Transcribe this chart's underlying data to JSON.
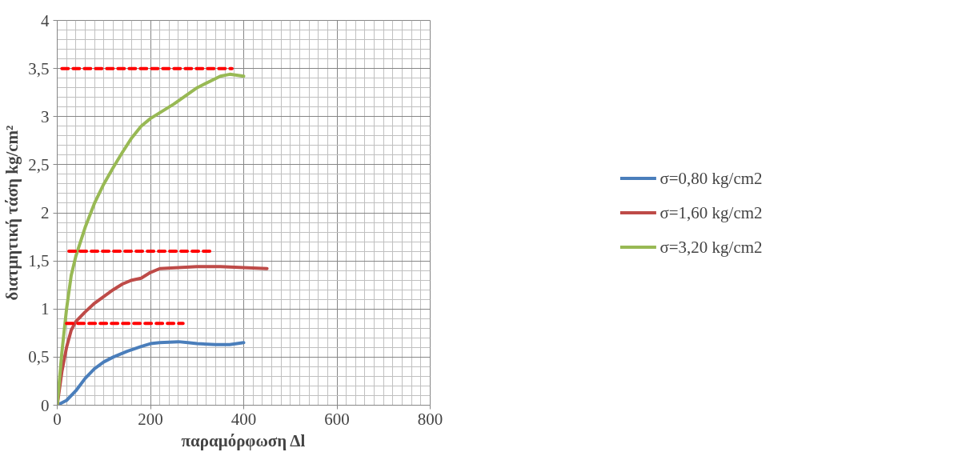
{
  "chart_data": {
    "type": "line",
    "xlabel": "παραμόρφωση Δl",
    "ylabel": "διατμητική τάση kg/cm²",
    "xlim": [
      0,
      800
    ],
    "xticks": [
      0,
      200,
      400,
      600,
      800
    ],
    "ylim": [
      0,
      4
    ],
    "yticks": [
      0,
      {
        "value": 0.5,
        "label": "0,5"
      },
      1,
      {
        "value": 1.5,
        "label": "1,5"
      },
      2,
      {
        "value": 2.5,
        "label": "2,5"
      },
      3,
      {
        "value": 3.5,
        "label": "3,5"
      },
      4
    ],
    "grid": true,
    "legend": "right",
    "line_style": "solid",
    "series": [
      {
        "name": "σ=0,80 kg/cm2",
        "color": "#4a7ebb",
        "x": [
          0,
          20,
          40,
          60,
          80,
          100,
          120,
          150,
          180,
          200,
          220,
          260,
          280,
          300,
          340,
          370,
          400
        ],
        "values": [
          0,
          0.05,
          0.15,
          0.28,
          0.38,
          0.45,
          0.5,
          0.56,
          0.61,
          0.64,
          0.65,
          0.66,
          0.65,
          0.64,
          0.63,
          0.63,
          0.65
        ]
      },
      {
        "name": "σ=1,60 kg/cm2",
        "color": "#be4b48",
        "x": [
          0,
          10,
          20,
          30,
          40,
          60,
          80,
          100,
          120,
          140,
          160,
          180,
          200,
          220,
          260,
          300,
          350,
          400,
          450
        ],
        "values": [
          0,
          0.35,
          0.6,
          0.78,
          0.87,
          0.97,
          1.06,
          1.13,
          1.2,
          1.26,
          1.3,
          1.32,
          1.38,
          1.42,
          1.43,
          1.44,
          1.44,
          1.43,
          1.42
        ]
      },
      {
        "name": "σ=3,20 kg/cm2",
        "color": "#98b954",
        "x": [
          0,
          10,
          20,
          30,
          40,
          60,
          80,
          100,
          120,
          140,
          160,
          180,
          200,
          250,
          300,
          350,
          370,
          400
        ],
        "values": [
          0,
          0.55,
          1.0,
          1.35,
          1.55,
          1.85,
          2.1,
          2.3,
          2.47,
          2.63,
          2.78,
          2.9,
          2.98,
          3.13,
          3.3,
          3.42,
          3.44,
          3.42
        ]
      },
      {
        "color": "#ff0000",
        "line_style": "dashed",
        "x": [
          10,
          375
        ],
        "values": [
          3.5,
          3.5
        ]
      },
      {
        "color": "#ff0000",
        "line_style": "dashed",
        "x": [
          25,
          330
        ],
        "values": [
          1.6,
          1.6
        ]
      },
      {
        "color": "#ff0000",
        "line_style": "dashed",
        "x": [
          20,
          270
        ],
        "values": [
          0.85,
          0.85
        ]
      }
    ]
  }
}
